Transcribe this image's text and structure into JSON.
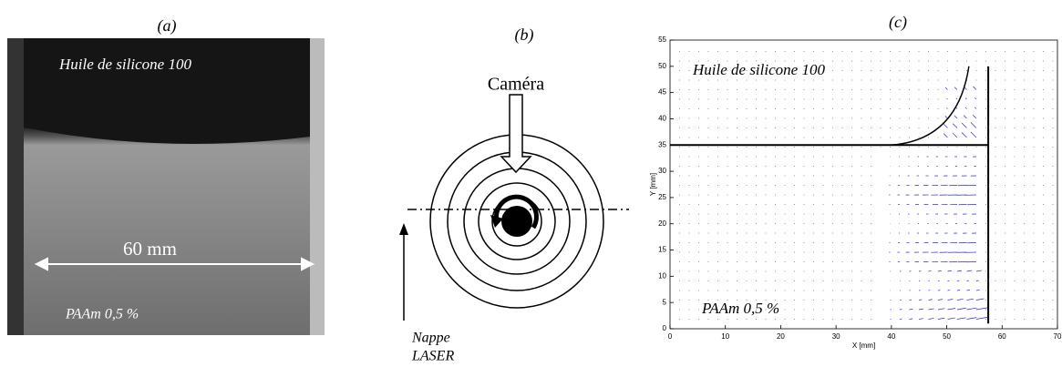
{
  "panel_a": {
    "label": "(a)",
    "top_fluid": "Huile de silicone  100",
    "scale": "60 mm",
    "bottom_fluid": "PAAm 0,5 %"
  },
  "panel_b": {
    "label": "(b)",
    "camera": "Caméra",
    "laser": [
      "Nappe",
      "LASER"
    ]
  },
  "panel_c": {
    "label": "(c)",
    "top_fluid": "Huile de silicone 100",
    "bottom_fluid": "PAAm 0,5 %",
    "xlabel": "X [mm]",
    "ylabel": "Y [mm]",
    "xlim": [
      0,
      70
    ],
    "ylim": [
      0,
      55
    ],
    "xticks": [
      0,
      10,
      20,
      30,
      40,
      50,
      60,
      70
    ],
    "yticks": [
      0,
      5,
      10,
      15,
      20,
      25,
      30,
      35,
      40,
      45,
      50,
      55
    ]
  }
}
